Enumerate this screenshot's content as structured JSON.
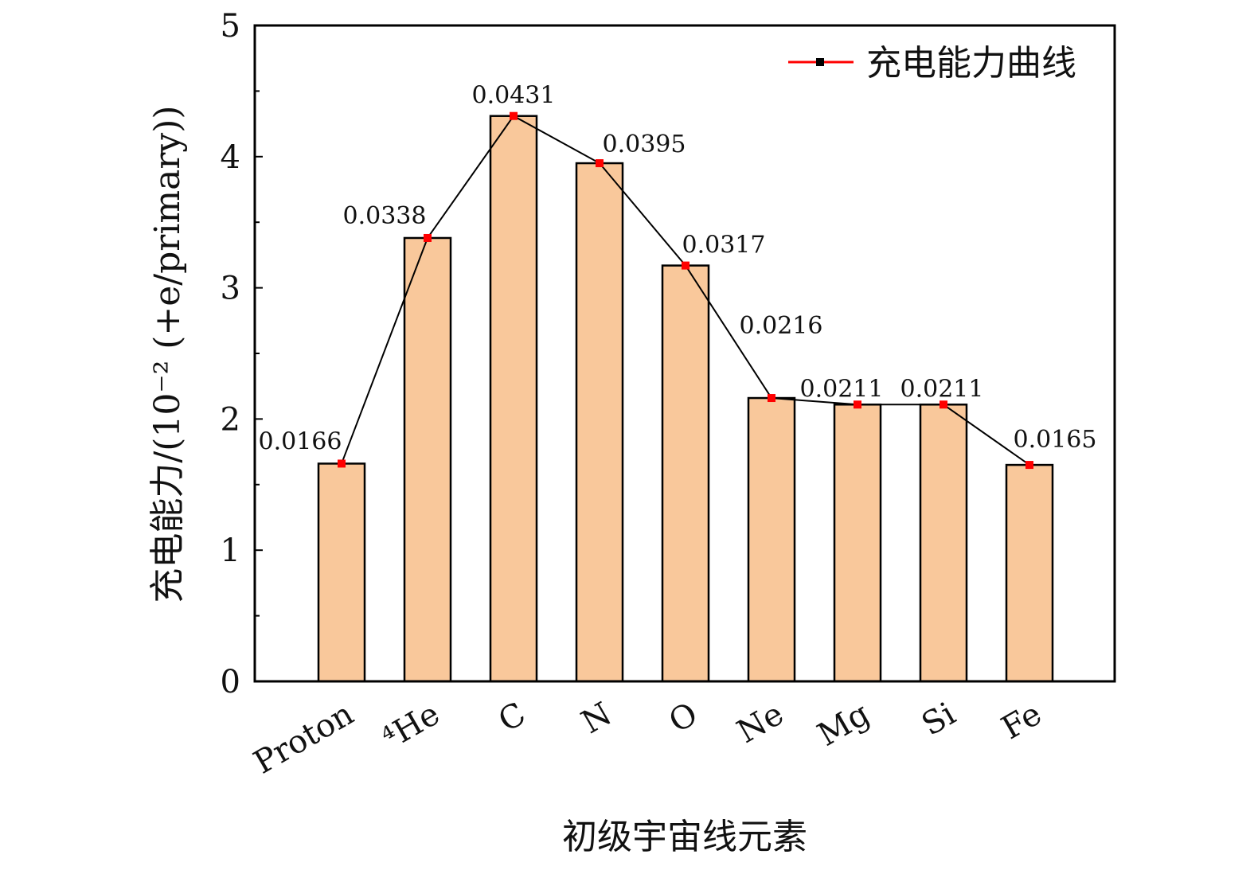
{
  "chart_data": {
    "type": "bar",
    "title": "",
    "xlabel": "初级宇宙线元素",
    "ylabel": "充电能力/(10⁻² (+e/primary))",
    "ylim": [
      0,
      5
    ],
    "yticks": [
      "0",
      "1",
      "2",
      "3",
      "4",
      "5"
    ],
    "categories": [
      "Proton",
      "⁴He",
      "C",
      "N",
      "O",
      "Ne",
      "Mg",
      "Si",
      "Fe"
    ],
    "series": [
      {
        "values": [
          1.66,
          3.38,
          4.31,
          3.95,
          3.17,
          2.16,
          2.11,
          2.11,
          1.65
        ],
        "color": "#f9c89b"
      },
      {
        "name": "充电能力曲线",
        "type": "line",
        "values": [
          1.66,
          3.38,
          4.31,
          3.95,
          3.17,
          2.16,
          2.11,
          2.11,
          1.65
        ],
        "line_color": "#000000",
        "marker_color": "#ff0000"
      }
    ],
    "data_labels": [
      "0.0166",
      "0.0338",
      "0.0431",
      "0.0395",
      "0.0317",
      "0.0216",
      "0.0211",
      "0.0211",
      "0.0165"
    ],
    "legend": {
      "position": "top-right",
      "entries": [
        "充电能力曲线"
      ]
    },
    "grid": false
  }
}
